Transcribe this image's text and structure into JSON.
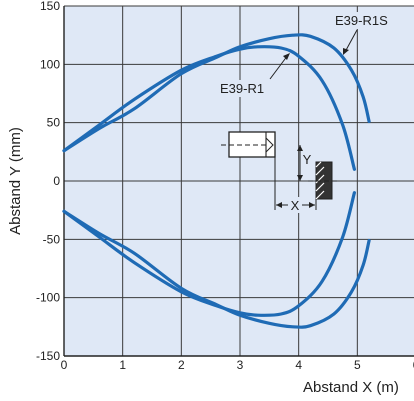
{
  "chart_data": {
    "type": "line",
    "title": "",
    "xlabel": "Abstand X (m)",
    "ylabel": "Abstand Y (mm)",
    "xlim": [
      0,
      6
    ],
    "ylim": [
      -150,
      150
    ],
    "x_ticks": [
      "0",
      "1",
      "2",
      "3",
      "4",
      "5",
      "6"
    ],
    "y_ticks": [
      "150",
      "100",
      "50",
      "0",
      "-50",
      "-100",
      "-150"
    ],
    "grid": true,
    "legend": "none",
    "colors": {
      "plot_bg": "#dfe8f6",
      "grid": "#3a3a3a",
      "series": "#1f6bb5"
    },
    "series": [
      {
        "name": "E39-R1",
        "x": [
          0,
          0.6,
          1.2,
          2.0,
          2.6,
          3.0,
          3.3,
          3.7,
          4.0,
          4.4,
          4.75,
          4.95
        ],
        "y": [
          26,
          48,
          70,
          95,
          107,
          113,
          115,
          114,
          107,
          86,
          48,
          10
        ],
        "mirror_y": true
      },
      {
        "name": "E39-R1S",
        "x": [
          0,
          0.6,
          1.2,
          2.0,
          2.6,
          3.0,
          3.5,
          3.9,
          4.2,
          4.6,
          4.9,
          5.1,
          5.2
        ],
        "y": [
          26,
          45,
          62,
          92,
          106,
          115,
          122,
          125,
          124,
          114,
          95,
          72,
          51
        ],
        "mirror_y": true
      }
    ],
    "annotations": {
      "label_r1": "E39-R1",
      "label_r1s": "E39-R1S",
      "diagram_y": "Y",
      "diagram_x": "X"
    }
  }
}
